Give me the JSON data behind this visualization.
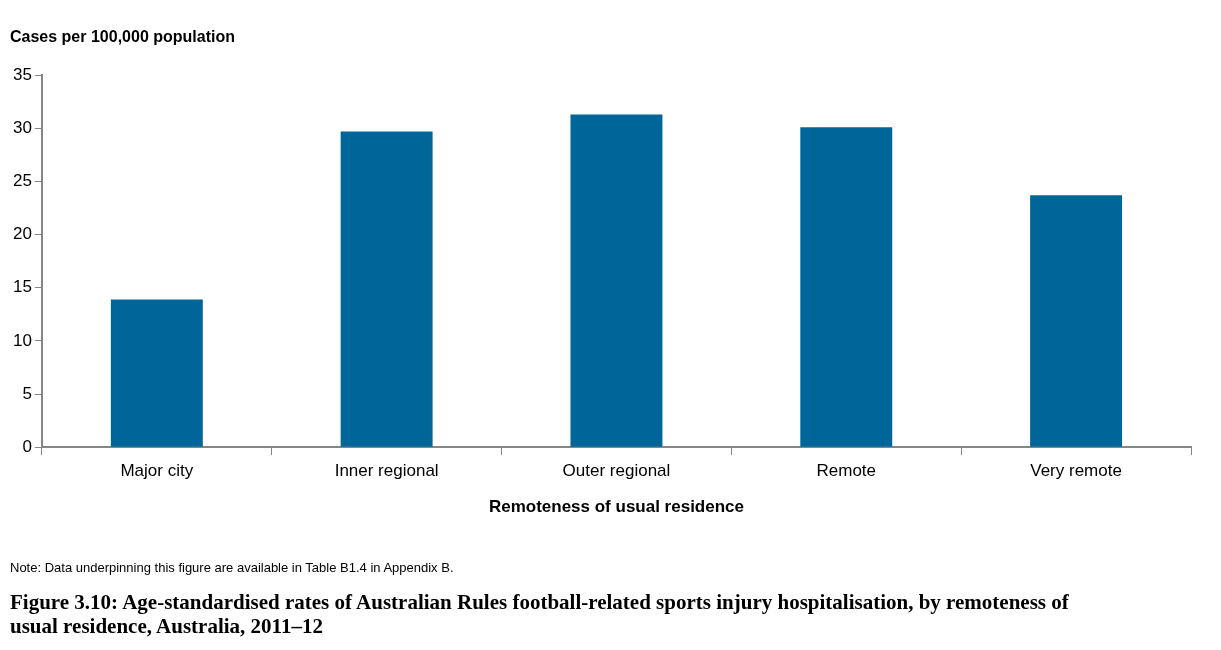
{
  "chart_data": {
    "type": "bar",
    "title": "Figure 3.10: Age-standardised rates of Australian Rules football-related sports injury hospitalisation, by remoteness of usual residence, Australia, 2011–12",
    "ylabel": "Cases per 100,000 population",
    "xlabel": "Remoteness of usual residence",
    "categories": [
      "Major city",
      "Inner regional",
      "Outer regional",
      "Remote",
      "Very remote"
    ],
    "values": [
      13.9,
      29.7,
      31.3,
      30.1,
      23.7
    ],
    "color": "#006699",
    "ylim": [
      0,
      35
    ],
    "yticks": [
      0,
      5,
      10,
      15,
      20,
      25,
      30,
      35
    ],
    "annotations": [
      "Note: Data underpinning this figure are available in Table B1.4 in Appendix B."
    ]
  }
}
